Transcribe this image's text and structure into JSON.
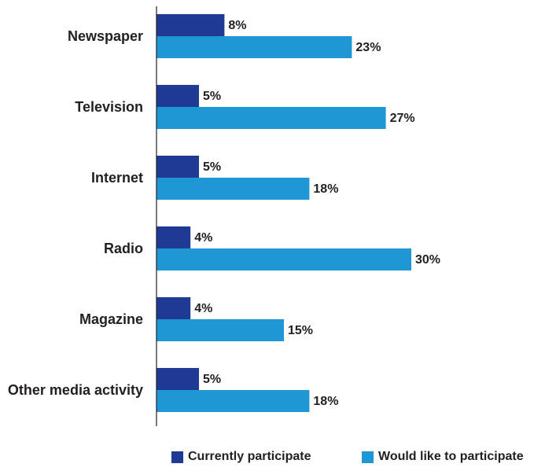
{
  "chart_data": {
    "type": "bar",
    "orientation": "horizontal",
    "categories": [
      "Newspaper",
      "Television",
      "Internet",
      "Radio",
      "Magazine",
      "Other media activity"
    ],
    "series": [
      {
        "name": "Currently participate",
        "values": [
          8,
          5,
          5,
          4,
          4,
          5
        ],
        "labels": [
          "8%",
          "5%",
          "5%",
          "4%",
          "4%",
          "5%"
        ],
        "color": "#1f3a93"
      },
      {
        "name": "Would like to participate",
        "values": [
          23,
          27,
          18,
          30,
          15,
          18
        ],
        "labels": [
          "23%",
          "27%",
          "18%",
          "30%",
          "15%",
          "18%"
        ],
        "color": "#1f97d4"
      }
    ],
    "unit": "%",
    "xlim": [
      0,
      35
    ],
    "grid": false,
    "legend_position": "bottom"
  }
}
